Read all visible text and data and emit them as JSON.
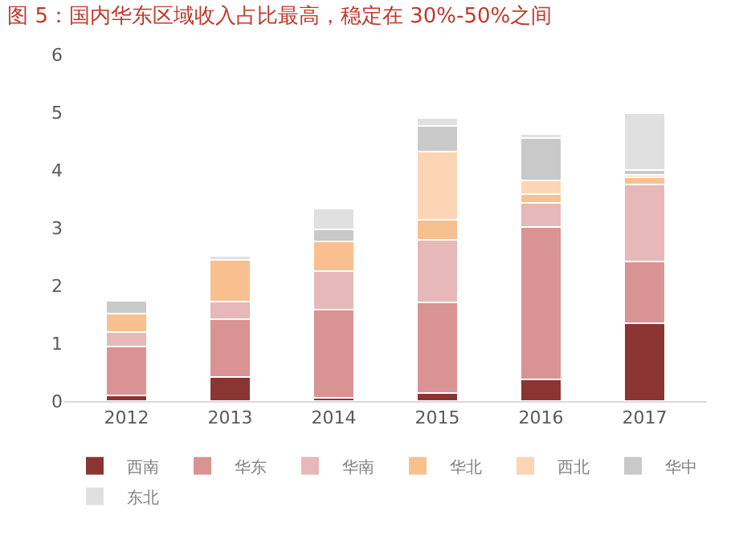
{
  "chart_data": {
    "type": "bar",
    "stacked": true,
    "title": "图 5：国内华东区域收入占比最高，稳定在 30%-50%之间",
    "categories": [
      "2012",
      "2013",
      "2014",
      "2015",
      "2016",
      "2017"
    ],
    "series": [
      {
        "name": "西南",
        "color": "#8b3532",
        "values": [
          0.1,
          0.42,
          0.06,
          0.14,
          0.37,
          1.35
        ]
      },
      {
        "name": "华东",
        "color": "#d99393",
        "values": [
          0.84,
          1.0,
          1.52,
          1.57,
          2.65,
          1.06
        ]
      },
      {
        "name": "华南",
        "color": "#e6b8b7",
        "values": [
          0.26,
          0.3,
          0.67,
          1.08,
          0.41,
          1.34
        ]
      },
      {
        "name": "华北",
        "color": "#f9c08f",
        "values": [
          0.32,
          0.72,
          0.52,
          0.35,
          0.15,
          0.13
        ]
      },
      {
        "name": "西北",
        "color": "#fcd5b5",
        "values": [
          null,
          null,
          null,
          1.18,
          0.24,
          0.04
        ]
      },
      {
        "name": "华中",
        "color": "#c9c9c9",
        "values": [
          0.22,
          null,
          0.2,
          0.45,
          0.74,
          0.08
        ]
      },
      {
        "name": "东北",
        "color": "#e0e0e0",
        "values": [
          null,
          0.08,
          0.36,
          0.13,
          0.06,
          0.98
        ]
      }
    ],
    "ylim": [
      0,
      6
    ],
    "yticks": [
      0,
      1,
      2,
      3,
      4,
      5,
      6
    ],
    "legend": "bottom"
  }
}
